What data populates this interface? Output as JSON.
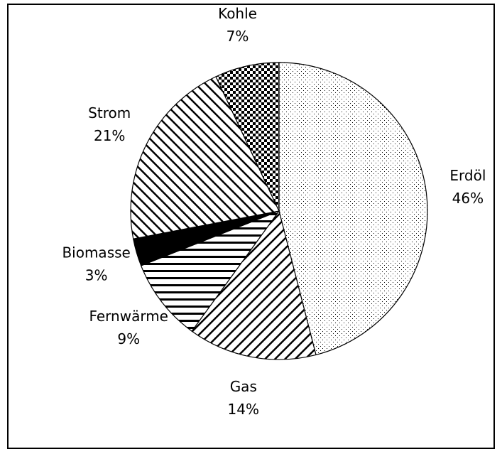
{
  "chart_data": {
    "type": "pie",
    "categories": [
      "Erdöl",
      "Gas",
      "Fernwärme",
      "Biomasse",
      "Strom",
      "Kohle"
    ],
    "values": [
      46,
      14,
      9,
      3,
      21,
      7
    ],
    "value_labels": [
      "46%",
      "14%",
      "9%",
      "3%",
      "21%",
      "7%"
    ],
    "patterns": [
      "dots",
      "backslash",
      "horizontal",
      "solid",
      "slash",
      "checker"
    ],
    "color": "#000000"
  }
}
